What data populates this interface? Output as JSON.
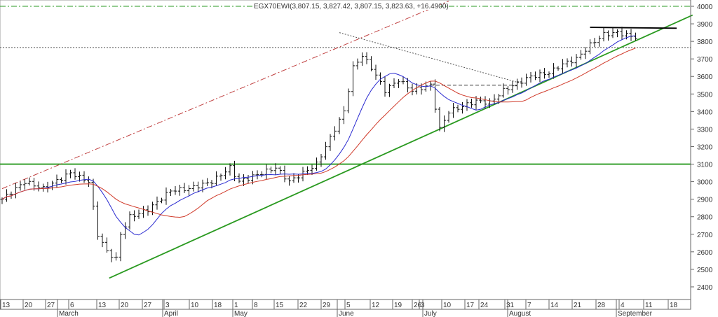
{
  "chart_data": {
    "type": "ohlc",
    "title": "EGX70EWI(3,807.15, 3,827.42, 3,807.15, 3,823.63, +16.4900)",
    "ylim": [
      2350,
      4050
    ],
    "yticks": [
      2400,
      2500,
      2600,
      2700,
      2800,
      2900,
      3000,
      3100,
      3200,
      3300,
      3400,
      3500,
      3600,
      3700,
      3800,
      3900,
      4000
    ],
    "week_ticks": [
      "13",
      "20",
      "27",
      "6",
      "13",
      "20",
      "27",
      "3",
      "10",
      "18",
      "1",
      "8",
      "15",
      "22",
      "29",
      "5",
      "12",
      "19",
      "26",
      "3",
      "10",
      "17",
      "24",
      "31",
      "7",
      "14",
      "21",
      "28",
      "4",
      "11",
      "18"
    ],
    "months": [
      "March",
      "April",
      "May",
      "June",
      "July",
      "August",
      "September"
    ],
    "price_keypoints_by_bar": [
      [
        0,
        2900
      ],
      [
        5,
        3000
      ],
      [
        9,
        2960
      ],
      [
        15,
        3050
      ],
      [
        19,
        3000
      ],
      [
        21,
        2700
      ],
      [
        23,
        2600
      ],
      [
        25,
        2560
      ],
      [
        26,
        2700
      ],
      [
        28,
        2800
      ],
      [
        32,
        2840
      ],
      [
        37,
        2950
      ],
      [
        41,
        2960
      ],
      [
        46,
        3000
      ],
      [
        50,
        3080
      ],
      [
        52,
        3000
      ],
      [
        57,
        3050
      ],
      [
        60,
        3080
      ],
      [
        63,
        3000
      ],
      [
        66,
        3050
      ],
      [
        69,
        3100
      ],
      [
        72,
        3250
      ],
      [
        75,
        3400
      ],
      [
        77,
        3650
      ],
      [
        79,
        3720
      ],
      [
        81,
        3650
      ],
      [
        84,
        3520
      ],
      [
        87,
        3580
      ],
      [
        90,
        3520
      ],
      [
        94,
        3550
      ],
      [
        96,
        3300
      ],
      [
        98,
        3400
      ],
      [
        101,
        3430
      ],
      [
        104,
        3460
      ],
      [
        107,
        3450
      ],
      [
        110,
        3520
      ],
      [
        113,
        3560
      ],
      [
        116,
        3600
      ],
      [
        120,
        3620
      ],
      [
        123,
        3670
      ],
      [
        126,
        3700
      ],
      [
        129,
        3780
      ],
      [
        132,
        3840
      ],
      [
        135,
        3850
      ],
      [
        139,
        3823
      ]
    ],
    "moving_averages": [
      {
        "period": 10,
        "color": "#2a2ad0"
      },
      {
        "period": 20,
        "color": "#d03a2a"
      }
    ],
    "lines": [
      {
        "kind": "horizontal",
        "value": 3100,
        "color": "#2a9a20"
      },
      {
        "kind": "horizontal-dotted",
        "value": 3765,
        "color": "#555555"
      },
      {
        "kind": "horizontal-dashdot",
        "value": 4000,
        "color": "#2a9a20"
      },
      {
        "kind": "trend",
        "from": [
          23.5,
          2450
        ],
        "to": [
          151.5,
          3950
        ],
        "color": "#2a9a20"
      },
      {
        "kind": "trend-dashdot",
        "from": [
          0,
          2960
        ],
        "to": [
          98,
          4030
        ],
        "color": "#c04040"
      },
      {
        "kind": "trend-dotted",
        "from": [
          74,
          3850
        ],
        "to": [
          114,
          3560
        ],
        "color": "#555555"
      },
      {
        "kind": "segment-dashed",
        "from": [
          94,
          3550
        ],
        "to": [
          113,
          3550
        ],
        "color": "#333333"
      },
      {
        "kind": "segment",
        "from": [
          129,
          3880
        ],
        "to": [
          148,
          3875
        ],
        "color": "#000000"
      }
    ]
  }
}
